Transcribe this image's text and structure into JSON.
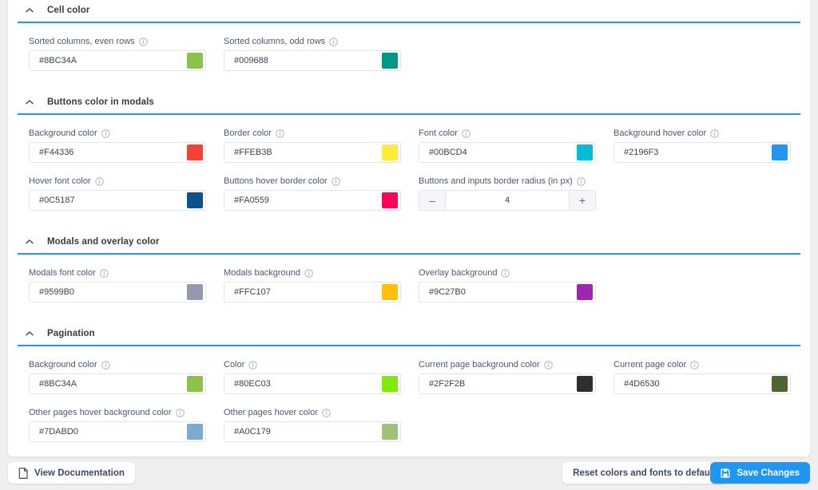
{
  "accent_color": "#2196f3",
  "sections": [
    {
      "title": "Cell color",
      "fields": [
        {
          "label": "Sorted columns, even rows",
          "value": "#8BC34A",
          "swatch": "#8BC34A"
        },
        {
          "label": "Sorted columns, odd rows",
          "value": "#009688",
          "swatch": "#009688"
        }
      ]
    },
    {
      "title": "Buttons color in modals",
      "fields": [
        {
          "label": "Background color",
          "value": "#F44336",
          "swatch": "#F44336"
        },
        {
          "label": "Border color",
          "value": "#FFEB3B",
          "swatch": "#FFEB3B"
        },
        {
          "label": "Font color",
          "value": "#00BCD4",
          "swatch": "#00BCD4"
        },
        {
          "label": "Background hover color",
          "value": "#2196F3",
          "swatch": "#2196F3"
        },
        {
          "label": "Hover font color",
          "value": "#0C5187",
          "swatch": "#0C5187"
        },
        {
          "label": "Buttons hover border color",
          "value": "#FA0559",
          "swatch": "#FA0559"
        },
        {
          "label": "Buttons and inputs border radius (in px)",
          "value": "4",
          "type": "stepper"
        }
      ]
    },
    {
      "title": "Modals and overlay color",
      "fields": [
        {
          "label": "Modals font color",
          "value": "#9599B0",
          "swatch": "#9599B0"
        },
        {
          "label": "Modals background",
          "value": "#FFC107",
          "swatch": "#FFC107"
        },
        {
          "label": "Overlay background",
          "value": "#9C27B0",
          "swatch": "#9C27B0"
        }
      ]
    },
    {
      "title": "Pagination",
      "fields": [
        {
          "label": "Background color",
          "value": "#8BC34A",
          "swatch": "#8BC34A"
        },
        {
          "label": "Color",
          "value": "#80EC03",
          "swatch": "#80EC03"
        },
        {
          "label": "Current page background color",
          "value": "#2F2F2B",
          "swatch": "#2F2F2B"
        },
        {
          "label": "Current page color",
          "value": "#4D6530",
          "swatch": "#4D6530"
        },
        {
          "label": "Other pages hover background color",
          "value": "#7DABD0",
          "swatch": "#7DABD0"
        },
        {
          "label": "Other pages hover color",
          "value": "#A0C179",
          "swatch": "#A0C179"
        }
      ]
    }
  ],
  "stepper": {
    "minus_label": "–",
    "plus_label": "+"
  },
  "footer": {
    "view_documentation_label": "View Documentation",
    "reset_label": "Reset colors and fonts to default",
    "save_label": "Save Changes"
  }
}
